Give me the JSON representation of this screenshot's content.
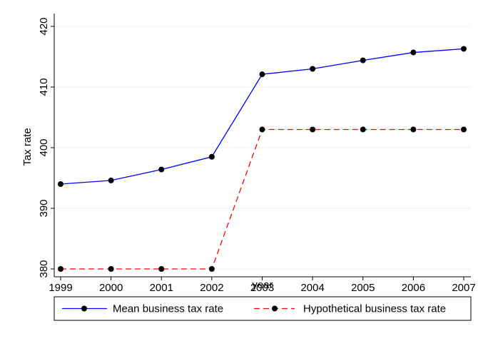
{
  "chart_data": {
    "type": "line",
    "title": "",
    "xlabel": "year",
    "ylabel": "Tax rate",
    "x": [
      1999,
      2000,
      2001,
      2002,
      2003,
      2004,
      2005,
      2006,
      2007
    ],
    "x_tick_labels": [
      "1999",
      "2000",
      "2001",
      "2002",
      "2003",
      "2004",
      "2005",
      "2006",
      "2007"
    ],
    "y_ticks": [
      380,
      390,
      400,
      410,
      420
    ],
    "y_tick_labels": [
      "380",
      "390",
      "400",
      "410",
      "420"
    ],
    "xlim": [
      1999,
      2007
    ],
    "ylim": [
      380,
      420
    ],
    "grid": "horizontal",
    "legend_position": "bottom",
    "series": [
      {
        "name": "Mean business tax rate",
        "color": "#0000ff",
        "line_style": "solid",
        "marker": "circle",
        "values": [
          394.0,
          394.6,
          396.4,
          398.5,
          412.1,
          413.0,
          414.4,
          415.7,
          416.3
        ]
      },
      {
        "name": "Hypothetical business tax rate",
        "color": "#ff0000",
        "line_style": "dashed",
        "marker": "circle",
        "values": [
          380,
          380,
          380,
          380,
          403,
          403,
          403,
          403,
          403
        ]
      }
    ]
  }
}
